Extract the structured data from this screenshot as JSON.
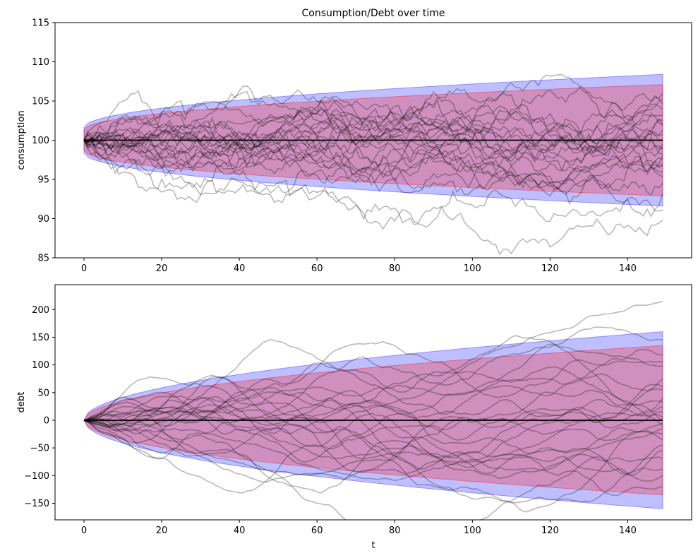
{
  "chart_data": [
    {
      "type": "line",
      "title": "Consumption/Debt over time",
      "xlabel": "",
      "ylabel": "consumption",
      "xlim": [
        -7.45,
        156.45
      ],
      "ylim": [
        85,
        115
      ],
      "xticks": [
        0,
        20,
        40,
        60,
        80,
        100,
        120,
        140
      ],
      "xtick_labels": [
        "0",
        "20",
        "40",
        "60",
        "80",
        "100",
        "120",
        "140"
      ],
      "yticks": [
        85,
        90,
        95,
        100,
        105,
        110,
        115
      ],
      "ytick_labels": [
        "85",
        "90",
        "95",
        "100",
        "105",
        "110",
        "115"
      ],
      "t_range": [
        0,
        149
      ],
      "mean_line": {
        "value": 100,
        "color": "#000000"
      },
      "bands": [
        {
          "color": "#0000ff",
          "opacity": 0.25,
          "upper_start": 101.6,
          "upper_end": 108.4,
          "lower_start": 98.4,
          "lower_end": 91.6
        },
        {
          "color": "#ff0000",
          "opacity": 0.25,
          "upper_start": 101.3,
          "upper_end": 107.1,
          "lower_start": 98.7,
          "lower_end": 92.9
        }
      ],
      "sample_paths": {
        "count": 25,
        "color": "#000000",
        "opacity": 0.27,
        "start": 100,
        "end_values": [
          89.8,
          91.1,
          93.2,
          94.5,
          95.3,
          96.0,
          96.8,
          97.5,
          98.2,
          98.9,
          99.5,
          100.1,
          100.7,
          101.3,
          101.9,
          102.5,
          103.2,
          103.9,
          104.6,
          105.3,
          106.0,
          98.0,
          97.0,
          99.0,
          102.0
        ],
        "highlighted_min": {
          "t": 125,
          "value": 87.5
        }
      }
    },
    {
      "type": "line",
      "title": "",
      "xlabel": "t",
      "ylabel": "debt",
      "xlim": [
        -7.45,
        156.45
      ],
      "ylim": [
        -180,
        245
      ],
      "xticks": [
        0,
        20,
        40,
        60,
        80,
        100,
        120,
        140
      ],
      "xtick_labels": [
        "0",
        "20",
        "40",
        "60",
        "80",
        "100",
        "120",
        "140"
      ],
      "yticks": [
        -150,
        -100,
        -50,
        0,
        50,
        100,
        150,
        200
      ],
      "ytick_labels": [
        "−150",
        "−100",
        "−50",
        "0",
        "50",
        "100",
        "150",
        "200"
      ],
      "t_range": [
        0,
        149
      ],
      "mean_line": {
        "value": 0,
        "color": "#000000"
      },
      "bands": [
        {
          "color": "#0000ff",
          "opacity": 0.25,
          "upper_end": 160,
          "lower_end": -160
        },
        {
          "color": "#ff0000",
          "opacity": 0.25,
          "upper_end": 135,
          "lower_end": -135
        }
      ],
      "sample_paths": {
        "count": 25,
        "color": "#000000",
        "opacity": 0.27,
        "start": 0,
        "end_values": [
          215,
          145,
          118,
          105,
          98,
          75,
          55,
          33,
          25,
          15,
          5,
          -5,
          -15,
          -25,
          -35,
          -45,
          -55,
          -70,
          -88,
          -100,
          -120,
          60,
          40,
          -10,
          0
        ]
      }
    }
  ]
}
